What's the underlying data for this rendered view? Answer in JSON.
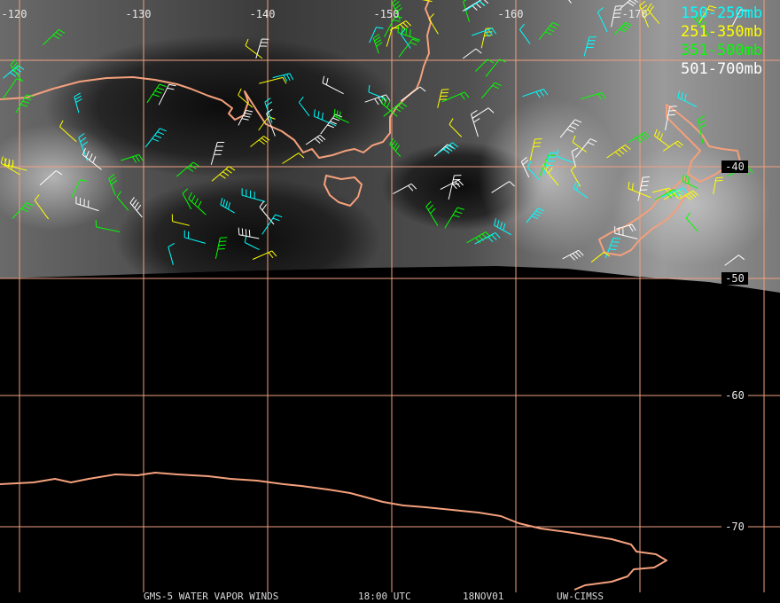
{
  "map": {
    "longitude_labels": [
      -120,
      -130,
      -140,
      -150,
      -160,
      -170
    ],
    "latitude_labels": [
      -40,
      -50,
      -60,
      -70
    ],
    "legend": [
      {
        "label": "150-250mb",
        "color": "#00ffff"
      },
      {
        "label": "251-350mb",
        "color": "#ffff00"
      },
      {
        "label": "351-500mb",
        "color": "#00ff00"
      },
      {
        "label": "501-700mb",
        "color": "#ffffff"
      }
    ],
    "footer": {
      "product": "GMS-5 WATER VAPOR WINDS",
      "time": "18:00 UTC",
      "date": "18NOV01",
      "source": "UW-CIMSS"
    }
  }
}
